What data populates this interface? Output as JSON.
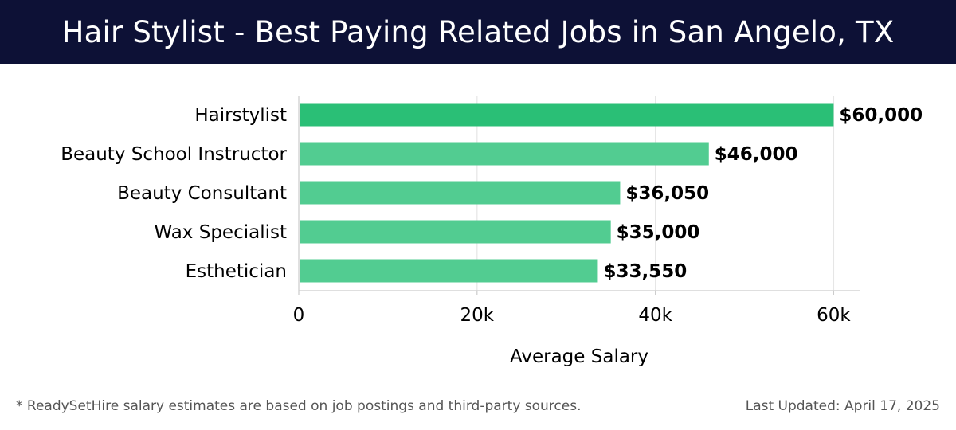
{
  "header": {
    "title": "Hair Stylist - Best Paying Related Jobs in San Angelo, TX"
  },
  "chart_data": {
    "type": "bar",
    "orientation": "horizontal",
    "categories": [
      "Hairstylist",
      "Beauty School Instructor",
      "Beauty Consultant",
      "Wax Specialist",
      "Esthetician"
    ],
    "values": [
      60000,
      46000,
      36050,
      35000,
      33550
    ],
    "value_labels": [
      "$60,000",
      "$46,000",
      "$36,050",
      "$35,000",
      "$33,550"
    ],
    "xlabel": "Average Salary",
    "ylabel": "",
    "xlim": [
      0,
      63000
    ],
    "xticks": [
      0,
      20000,
      40000,
      60000
    ],
    "xtick_labels": [
      "0",
      "20k",
      "40k",
      "60k"
    ],
    "grid": true,
    "colors": {
      "top_bar": "#2abf76",
      "bar": "#52cc91",
      "grid": "#e6e6e6",
      "axis": "#cccccc",
      "text": "#000000"
    }
  },
  "footer": {
    "note": "* ReadySetHire salary estimates are based on job postings and third-party sources.",
    "updated": "Last Updated: April 17, 2025"
  }
}
